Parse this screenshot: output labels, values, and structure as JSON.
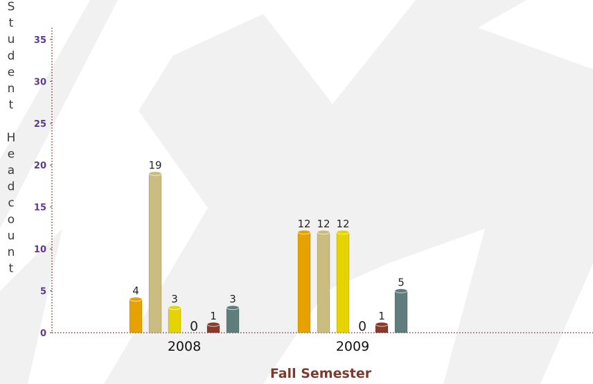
{
  "chart_data": {
    "type": "bar",
    "x_label": "Fall Semester",
    "y_label": "Student Headcount",
    "categories": [
      "2008",
      "2009"
    ],
    "series": [
      {
        "color": "#e8a200",
        "values": [
          4,
          12
        ]
      },
      {
        "color": "#cbbd80",
        "values": [
          19,
          12
        ]
      },
      {
        "color": "#e6d400",
        "values": [
          3,
          12
        ]
      },
      {
        "color": "#a0a0a0",
        "values": [
          0,
          0
        ]
      },
      {
        "color": "#8a3a28",
        "values": [
          1,
          1
        ]
      },
      {
        "color": "#5f7d7c",
        "values": [
          3,
          5
        ]
      }
    ],
    "ylim": [
      0,
      36.4
    ],
    "yticks": [
      0,
      5,
      10,
      15,
      20,
      25,
      30,
      35
    ]
  }
}
